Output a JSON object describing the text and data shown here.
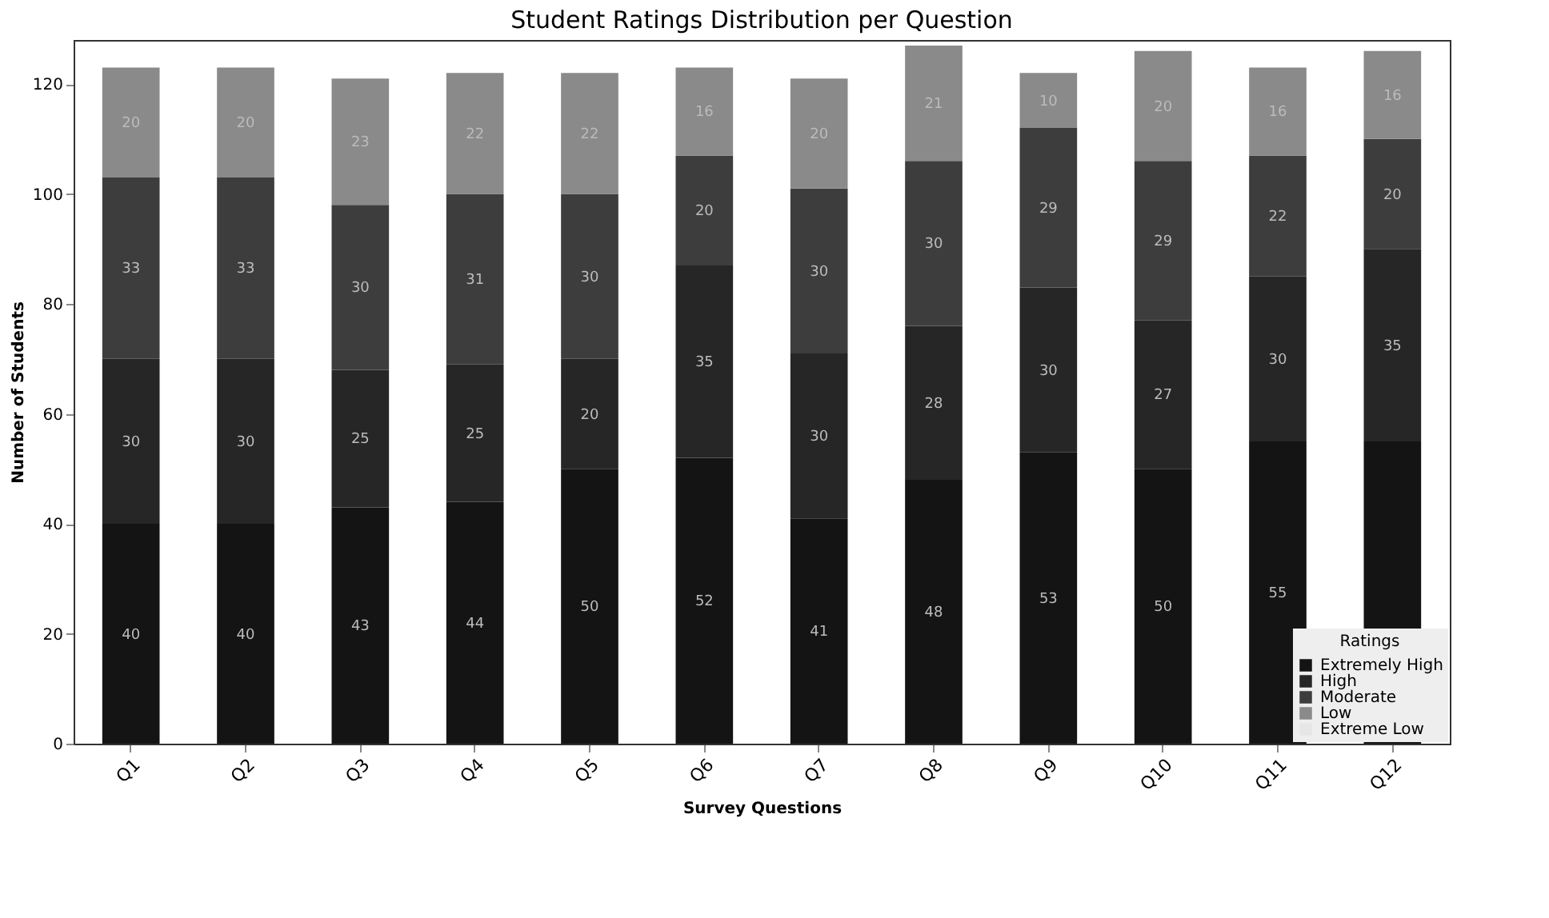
{
  "chart_data": {
    "type": "bar",
    "title": "Student Ratings Distribution per Question",
    "xlabel": "Survey Questions",
    "ylabel": "Number of Students",
    "legend_title": "Ratings",
    "categories": [
      "Q1",
      "Q2",
      "Q3",
      "Q4",
      "Q5",
      "Q6",
      "Q7",
      "Q8",
      "Q9",
      "Q10",
      "Q11",
      "Q12"
    ],
    "stacked": true,
    "legend": "bottom right",
    "ylim": [
      0,
      128
    ],
    "yticks": [
      0,
      20,
      40,
      60,
      80,
      100,
      120
    ],
    "series": [
      {
        "name": "Extremely High",
        "color": "#141414",
        "values": [
          40,
          40,
          43,
          44,
          50,
          52,
          41,
          48,
          53,
          50,
          55,
          55
        ],
        "value_labels": [
          "40",
          "40",
          "43",
          "44",
          "50",
          "52",
          "41",
          "48",
          "53",
          "50",
          "55",
          null
        ]
      },
      {
        "name": "High",
        "color": "#262626",
        "values": [
          30,
          30,
          25,
          25,
          20,
          35,
          30,
          28,
          30,
          27,
          30,
          35
        ],
        "value_labels": [
          "30",
          "30",
          "25",
          "25",
          "20",
          "35",
          "30",
          "28",
          "30",
          "27",
          "30",
          "35"
        ]
      },
      {
        "name": "Moderate",
        "color": "#3d3d3d",
        "values": [
          33,
          33,
          30,
          31,
          30,
          20,
          30,
          30,
          29,
          29,
          22,
          20
        ],
        "value_labels": [
          "33",
          "33",
          "30",
          "31",
          "30",
          "20",
          "30",
          "30",
          "29",
          "29",
          "22",
          "20"
        ]
      },
      {
        "name": "Low",
        "color": "#8a8a8a",
        "values": [
          20,
          20,
          23,
          22,
          22,
          16,
          20,
          21,
          10,
          20,
          16,
          16
        ],
        "value_labels": [
          "20",
          "20",
          "23",
          "22",
          "22",
          "16",
          "20",
          "21",
          "10",
          "20",
          "16",
          "16"
        ]
      },
      {
        "name": "Extreme Low",
        "color": "#e6e6e6",
        "values": [
          0,
          0,
          0,
          0,
          0,
          0,
          0,
          0,
          0,
          0,
          0,
          0
        ],
        "value_labels": [
          null,
          null,
          null,
          null,
          null,
          null,
          null,
          null,
          null,
          null,
          null,
          null
        ]
      }
    ]
  }
}
